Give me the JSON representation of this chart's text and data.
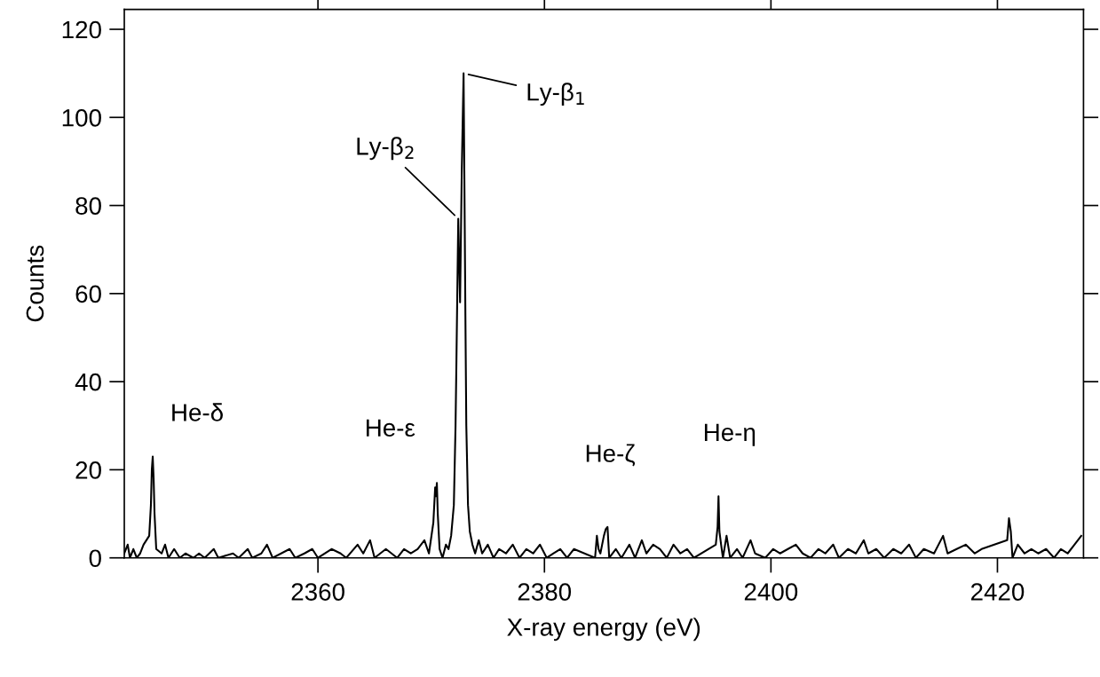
{
  "chart_data": {
    "type": "line",
    "xlabel": "X-ray energy (eV)",
    "ylabel": "Counts",
    "xlim": [
      2342.9,
      2427.6
    ],
    "ylim": [
      0,
      124.5
    ],
    "xticks": [
      2360,
      2380,
      2400,
      2420
    ],
    "yticks": [
      0,
      20,
      40,
      60,
      80,
      100,
      120
    ],
    "grid": false,
    "legend": false,
    "marker": "none",
    "line_style": "solid",
    "tick_labels": "xy",
    "series": [
      {
        "color": "#000000",
        "x": [
          2342.9,
          2343.2,
          2343.4,
          2343.7,
          2344.0,
          2344.3,
          2344.6,
          2345.1,
          2345.25,
          2345.33,
          2345.41,
          2345.49,
          2345.57,
          2345.72,
          2346.2,
          2346.5,
          2346.8,
          2347.3,
          2347.8,
          2348.3,
          2349.0,
          2349.5,
          2350.0,
          2350.8,
          2351.2,
          2352.5,
          2353.0,
          2353.8,
          2354.2,
          2355.0,
          2355.5,
          2356.0,
          2357.5,
          2358.0,
          2358.8,
          2359.5,
          2360.0,
          2361.2,
          2362.0,
          2362.5,
          2363.5,
          2364.0,
          2364.6,
          2365.0,
          2366.0,
          2366.5,
          2367.0,
          2367.6,
          2368.2,
          2368.8,
          2369.4,
          2369.8,
          2370.19,
          2370.35,
          2370.42,
          2370.5,
          2370.58,
          2370.74,
          2371.0,
          2371.3,
          2371.53,
          2371.76,
          2372.0,
          2372.15,
          2372.23,
          2372.39,
          2372.55,
          2372.7,
          2372.86,
          2372.94,
          2373.02,
          2373.1,
          2373.25,
          2373.41,
          2373.64,
          2373.88,
          2374.2,
          2374.5,
          2375.0,
          2375.5,
          2376.0,
          2376.6,
          2377.2,
          2377.8,
          2378.4,
          2379.0,
          2379.6,
          2380.2,
          2380.8,
          2381.4,
          2382.0,
          2382.6,
          2384.47,
          2384.63,
          2384.78,
          2384.94,
          2385.25,
          2385.41,
          2385.57,
          2385.72,
          2386.3,
          2386.8,
          2387.5,
          2388.0,
          2388.6,
          2389.0,
          2389.6,
          2390.2,
          2390.8,
          2391.4,
          2392.0,
          2392.6,
          2393.2,
          2395.13,
          2395.29,
          2395.37,
          2395.45,
          2395.6,
          2395.76,
          2396.08,
          2396.4,
          2397.0,
          2397.5,
          2398.2,
          2398.6,
          2399.5,
          2400.2,
          2400.8,
          2401.5,
          2402.2,
          2402.8,
          2403.5,
          2404.2,
          2404.8,
          2405.5,
          2406.0,
          2406.8,
          2407.5,
          2408.2,
          2408.6,
          2409.3,
          2410.0,
          2410.8,
          2411.5,
          2412.2,
          2412.8,
          2413.5,
          2414.4,
          2415.2,
          2415.6,
          2416.4,
          2417.2,
          2418.0,
          2418.6,
          2420.86,
          2421.02,
          2421.18,
          2421.33,
          2421.8,
          2422.4,
          2423.0,
          2423.6,
          2424.3,
          2425.0,
          2425.6,
          2426.2,
          2426.8,
          2427.4
        ],
        "values": [
          1,
          3,
          0,
          2,
          0,
          1,
          3,
          5,
          12,
          20,
          23,
          18,
          10,
          2,
          1,
          3,
          0,
          2,
          0,
          1,
          0,
          1,
          0,
          2,
          0,
          1,
          0,
          2,
          0,
          1,
          3,
          0,
          2,
          0,
          1,
          2,
          0,
          2,
          1,
          0,
          3,
          1,
          4,
          0,
          2,
          1,
          0,
          2,
          1,
          2,
          4,
          1,
          8,
          16,
          14,
          17,
          10,
          2,
          0,
          3,
          2,
          5,
          12,
          30,
          45,
          77,
          58,
          88,
          110,
          83,
          55,
          30,
          12,
          6,
          3,
          1,
          4,
          1,
          3,
          0,
          2,
          1,
          3,
          0,
          2,
          1,
          3,
          0,
          1,
          2,
          0,
          2,
          0,
          5,
          2,
          1,
          5,
          6.5,
          7,
          0,
          2,
          0,
          3,
          0,
          4,
          1,
          3,
          2,
          0,
          3,
          1,
          2,
          0,
          3,
          7,
          14,
          6,
          3,
          0,
          5,
          0,
          2,
          0,
          4,
          1,
          0,
          2,
          1,
          2,
          3,
          1,
          0,
          2,
          1,
          3,
          0,
          2,
          1,
          4,
          1,
          2,
          0,
          2,
          1,
          3,
          0,
          2,
          1,
          5,
          1,
          2,
          3,
          1,
          2,
          4,
          9,
          6,
          0,
          3,
          1,
          2,
          1,
          2,
          0,
          2,
          1,
          3,
          5
        ]
      }
    ],
    "annotations": [
      {
        "text": "He-δ",
        "x": 2345.41,
        "y": 23
      },
      {
        "text": "He-ε",
        "x": 2370.5,
        "y": 17
      },
      {
        "text": "Ly-β$_{2}$",
        "x": 2372.39,
        "y": 77
      },
      {
        "text": "Ly-β$_{1}$",
        "x": 2372.86,
        "y": 110
      },
      {
        "text": "He-ζ",
        "x": 2385.57,
        "y": 7
      },
      {
        "text": "He-η",
        "x": 2395.37,
        "y": 14
      }
    ]
  }
}
